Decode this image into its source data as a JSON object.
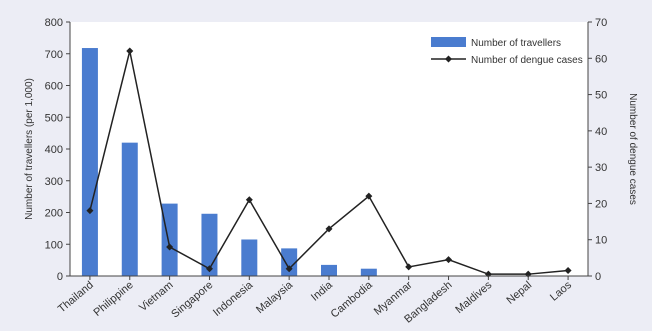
{
  "chart_data": {
    "type": "bar",
    "categories": [
      "Thailand",
      "Philippine",
      "Vietnam",
      "Singapore",
      "Indonesia",
      "Malaysia",
      "India",
      "Cambodia",
      "Myanmar",
      "Bangladesh",
      "Maldives",
      "Nepal",
      "Laos"
    ],
    "series": [
      {
        "name": "Number of travellers",
        "type": "bar",
        "axis": "left",
        "color": "#4a7ccf",
        "values": [
          718,
          420,
          228,
          196,
          115,
          87,
          35,
          23,
          0,
          0,
          0,
          0,
          0
        ]
      },
      {
        "name": "Number of dengue cases",
        "type": "line",
        "axis": "right",
        "color": "#222222",
        "values": [
          18,
          62,
          8,
          2,
          21,
          2,
          13,
          22,
          2.5,
          4.5,
          0.5,
          0.5,
          1.5
        ]
      }
    ],
    "ylabel": "Number of travellers (per 1,000)",
    "y2label": "Number of dengue cases",
    "ylim": [
      0,
      800
    ],
    "y2lim": [
      0,
      70
    ],
    "yticks": [
      "0",
      "100",
      "200",
      "300",
      "400",
      "500",
      "600",
      "700",
      "800"
    ],
    "y2ticks": [
      "0",
      "10",
      "20",
      "30",
      "40",
      "50",
      "60",
      "70"
    ],
    "grid": false,
    "legend_position": "top-right",
    "background": "#ecedf5"
  }
}
